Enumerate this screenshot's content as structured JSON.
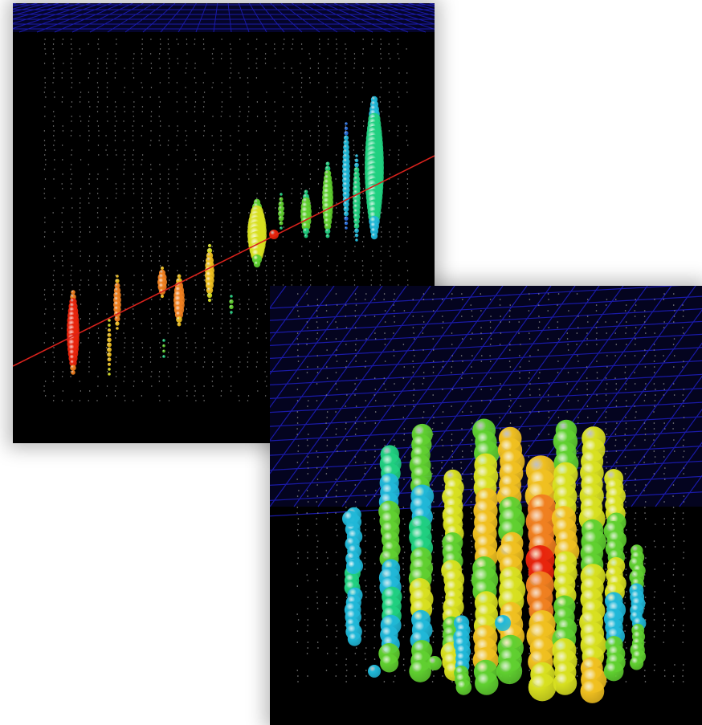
{
  "scene": {
    "background": "#000000",
    "grid_color": "#1a1aa8",
    "string_dot_color": "#8a8a8a",
    "track_line_color": "#d8221c",
    "hit_colors": [
      "#e8240c",
      "#f08020",
      "#f0c020",
      "#d8e020",
      "#60d030",
      "#20d080",
      "#20b8d8",
      "#2870e0"
    ]
  },
  "panels": [
    {
      "id": "track-event",
      "icon": "muon-track-event-display"
    },
    {
      "id": "cascade-event",
      "icon": "cascade-event-display"
    }
  ]
}
